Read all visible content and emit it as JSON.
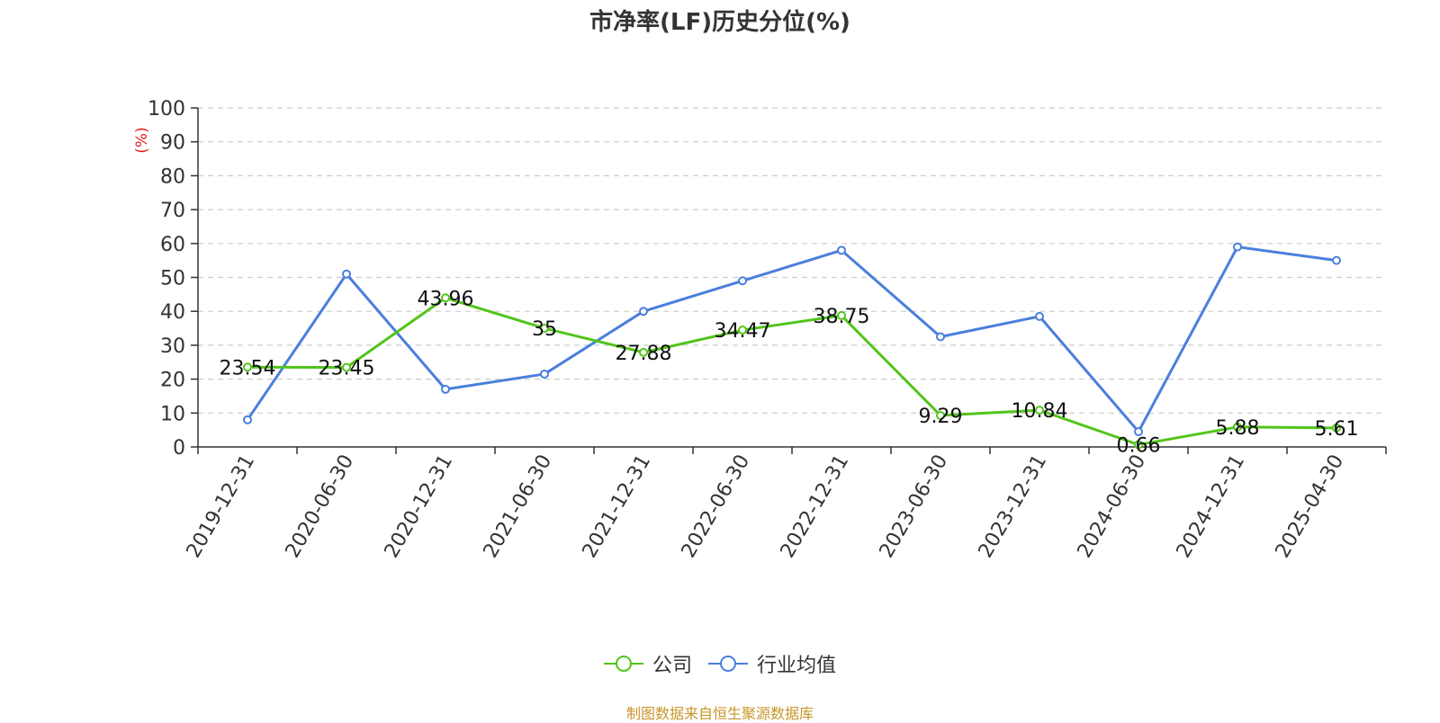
{
  "title": "市净率(LF)历史分位(%)",
  "source": "制图数据来自恒生聚源数据库",
  "chart_data": {
    "type": "line",
    "title": "市净率(LF)历史分位(%)",
    "ylabel": "(%)",
    "xlabel": "",
    "ylim": [
      0,
      100
    ],
    "yticks": [
      0,
      10,
      20,
      30,
      40,
      50,
      60,
      70,
      80,
      90,
      100
    ],
    "categories": [
      "2019-12-31",
      "2020-06-30",
      "2020-12-31",
      "2021-06-30",
      "2021-12-31",
      "2022-06-30",
      "2022-12-31",
      "2023-06-30",
      "2023-12-31",
      "2024-06-30",
      "2024-12-31",
      "2025-04-30"
    ],
    "series": [
      {
        "name": "公司",
        "color": "#52c41a",
        "show_labels": true,
        "values": [
          23.54,
          23.45,
          43.96,
          35,
          27.88,
          34.47,
          38.75,
          9.29,
          10.84,
          0.66,
          5.88,
          5.61
        ]
      },
      {
        "name": "行业均值",
        "color": "#4a7fdc",
        "show_labels": false,
        "values": [
          8,
          51,
          17,
          21.5,
          40,
          49,
          58,
          32.5,
          38.5,
          4.5,
          59,
          55
        ]
      }
    ],
    "grid": true,
    "legend_position": "bottom"
  }
}
